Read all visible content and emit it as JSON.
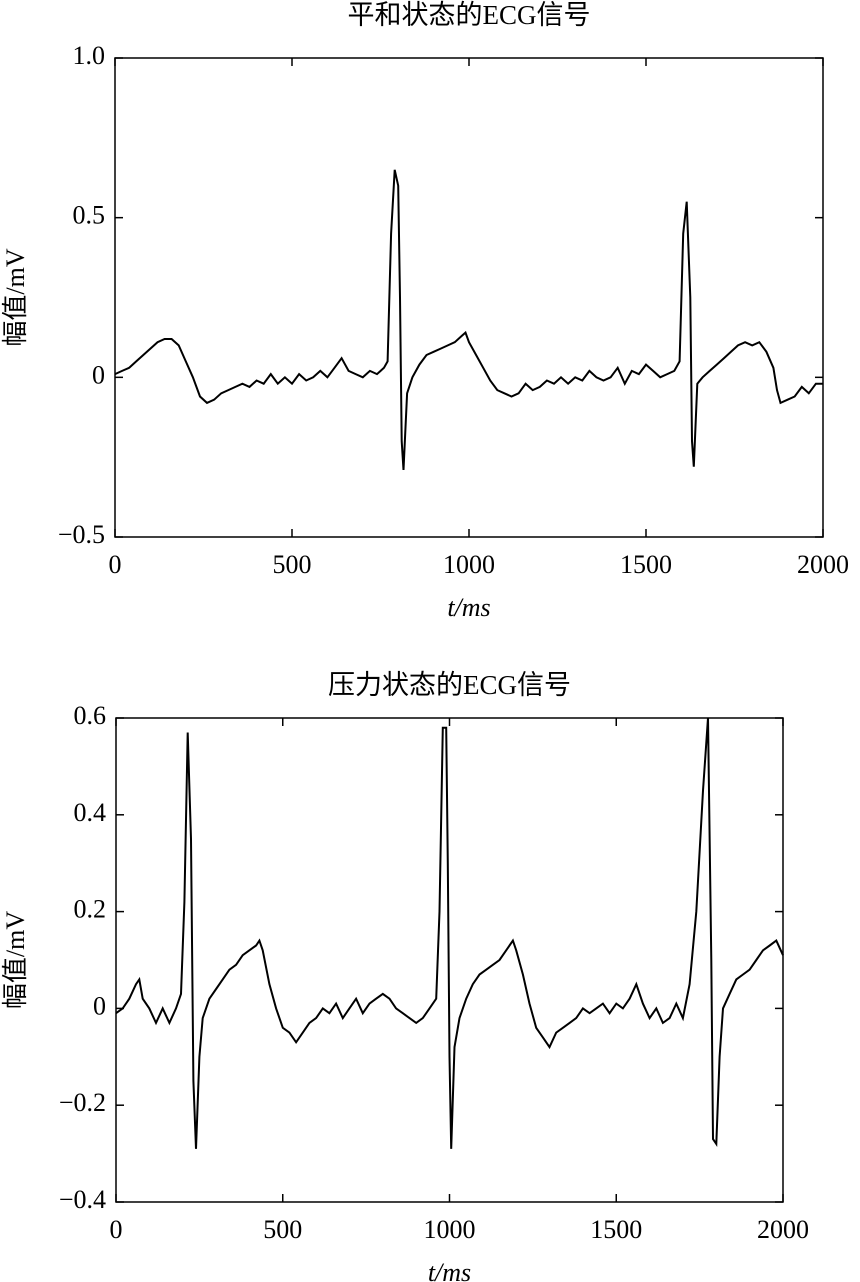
{
  "chart_data": [
    {
      "type": "line",
      "title": "平和状态的ECG信号",
      "xlabel": "t/ms",
      "ylabel": "幅值/mV",
      "color": "#000000",
      "xlim": [
        0,
        2000
      ],
      "xticks": [
        0,
        500,
        1000,
        1500,
        2000
      ],
      "ylim": [
        -0.5,
        1.0
      ],
      "yticks": [
        {
          "value": -0.5,
          "label": "−0.5"
        },
        0,
        0.5,
        {
          "value": 1.0,
          "label": "1.0"
        }
      ],
      "x": [
        0,
        20,
        40,
        60,
        80,
        100,
        120,
        140,
        160,
        180,
        200,
        220,
        240,
        260,
        280,
        300,
        320,
        340,
        360,
        380,
        400,
        420,
        440,
        460,
        480,
        500,
        520,
        540,
        560,
        580,
        600,
        620,
        640,
        660,
        680,
        700,
        720,
        740,
        760,
        770,
        780,
        790,
        800,
        805,
        810,
        815,
        825,
        840,
        860,
        880,
        900,
        920,
        940,
        960,
        980,
        990,
        1000,
        1020,
        1040,
        1060,
        1080,
        1100,
        1120,
        1140,
        1160,
        1180,
        1200,
        1220,
        1240,
        1260,
        1280,
        1300,
        1320,
        1340,
        1360,
        1380,
        1400,
        1420,
        1440,
        1460,
        1480,
        1500,
        1520,
        1540,
        1560,
        1580,
        1595,
        1605,
        1615,
        1625,
        1630,
        1635,
        1645,
        1660,
        1680,
        1700,
        1720,
        1740,
        1760,
        1780,
        1800,
        1820,
        1840,
        1860,
        1870,
        1880,
        1900,
        1920,
        1940,
        1960,
        1980,
        2000
      ],
      "values": [
        0.01,
        0.02,
        0.03,
        0.05,
        0.07,
        0.09,
        0.11,
        0.12,
        0.12,
        0.1,
        0.05,
        0.0,
        -0.06,
        -0.08,
        -0.07,
        -0.05,
        -0.04,
        -0.03,
        -0.02,
        -0.03,
        -0.01,
        -0.02,
        0.01,
        -0.02,
        0.0,
        -0.02,
        0.01,
        -0.01,
        0.0,
        0.02,
        0.0,
        0.03,
        0.06,
        0.02,
        0.01,
        0.0,
        0.02,
        0.01,
        0.03,
        0.05,
        0.45,
        0.65,
        0.6,
        0.25,
        -0.2,
        -0.29,
        -0.05,
        0.0,
        0.04,
        0.07,
        0.08,
        0.09,
        0.1,
        0.11,
        0.13,
        0.14,
        0.11,
        0.07,
        0.03,
        -0.01,
        -0.04,
        -0.05,
        -0.06,
        -0.05,
        -0.02,
        -0.04,
        -0.03,
        -0.01,
        -0.02,
        0.0,
        -0.02,
        0.0,
        -0.01,
        0.02,
        0.0,
        -0.01,
        0.0,
        0.03,
        -0.02,
        0.02,
        0.01,
        0.04,
        0.02,
        0.0,
        0.01,
        0.02,
        0.05,
        0.45,
        0.55,
        0.25,
        -0.2,
        -0.28,
        -0.02,
        0.0,
        0.02,
        0.04,
        0.06,
        0.08,
        0.1,
        0.11,
        0.1,
        0.11,
        0.08,
        0.03,
        -0.04,
        -0.08,
        -0.07,
        -0.06,
        -0.03,
        -0.05,
        -0.02,
        -0.02
      ]
    },
    {
      "type": "line",
      "title": "压力状态的ECG信号",
      "xlabel": "t/ms",
      "ylabel": "幅值/mV",
      "color": "#000000",
      "xlim": [
        0,
        2000
      ],
      "xticks": [
        0,
        500,
        1000,
        1500,
        2000
      ],
      "ylim": [
        -0.4,
        0.6
      ],
      "yticks": [
        {
          "value": -0.4,
          "label": "−0.4"
        },
        {
          "value": -0.2,
          "label": "−0.2"
        },
        0,
        0.2,
        0.4,
        0.6
      ],
      "x": [
        0,
        20,
        40,
        60,
        70,
        80,
        100,
        120,
        140,
        160,
        180,
        195,
        205,
        215,
        225,
        232,
        240,
        250,
        260,
        280,
        300,
        320,
        340,
        360,
        380,
        400,
        420,
        430,
        440,
        460,
        480,
        500,
        520,
        540,
        560,
        580,
        600,
        620,
        640,
        660,
        680,
        700,
        720,
        740,
        760,
        780,
        800,
        820,
        840,
        860,
        880,
        900,
        920,
        940,
        960,
        970,
        980,
        990,
        995,
        1000,
        1005,
        1015,
        1030,
        1050,
        1070,
        1090,
        1110,
        1130,
        1150,
        1170,
        1190,
        1200,
        1220,
        1240,
        1260,
        1280,
        1300,
        1320,
        1340,
        1360,
        1380,
        1400,
        1420,
        1440,
        1460,
        1480,
        1500,
        1520,
        1540,
        1560,
        1580,
        1600,
        1620,
        1640,
        1660,
        1680,
        1700,
        1720,
        1740,
        1760,
        1775,
        1785,
        1790,
        1800,
        1810,
        1820,
        1840,
        1860,
        1880,
        1900,
        1920,
        1940,
        1960,
        1980,
        2000
      ],
      "values": [
        -0.01,
        0.0,
        0.02,
        0.05,
        0.06,
        0.02,
        0.0,
        -0.03,
        0.0,
        -0.03,
        0.0,
        0.03,
        0.22,
        0.57,
        0.35,
        -0.15,
        -0.29,
        -0.1,
        -0.02,
        0.02,
        0.04,
        0.06,
        0.08,
        0.09,
        0.11,
        0.12,
        0.13,
        0.14,
        0.12,
        0.05,
        0.0,
        -0.04,
        -0.05,
        -0.07,
        -0.05,
        -0.03,
        -0.02,
        0.0,
        -0.01,
        0.01,
        -0.02,
        0.0,
        0.02,
        -0.01,
        0.01,
        0.02,
        0.03,
        0.02,
        0.0,
        -0.01,
        -0.02,
        -0.03,
        -0.02,
        0.0,
        0.02,
        0.2,
        0.58,
        0.58,
        0.3,
        -0.1,
        -0.29,
        -0.08,
        -0.02,
        0.02,
        0.05,
        0.07,
        0.08,
        0.09,
        0.1,
        0.12,
        0.14,
        0.12,
        0.07,
        0.01,
        -0.04,
        -0.06,
        -0.08,
        -0.05,
        -0.04,
        -0.03,
        -0.02,
        0.0,
        -0.01,
        0.0,
        0.01,
        -0.01,
        0.01,
        0.0,
        0.02,
        0.05,
        0.01,
        -0.02,
        0.0,
        -0.03,
        -0.02,
        0.01,
        -0.02,
        0.05,
        0.2,
        0.45,
        0.6,
        0.1,
        -0.27,
        -0.28,
        -0.1,
        0.0,
        0.03,
        0.06,
        0.07,
        0.08,
        0.1,
        0.12,
        0.13,
        0.14,
        0.11
      ]
    }
  ]
}
